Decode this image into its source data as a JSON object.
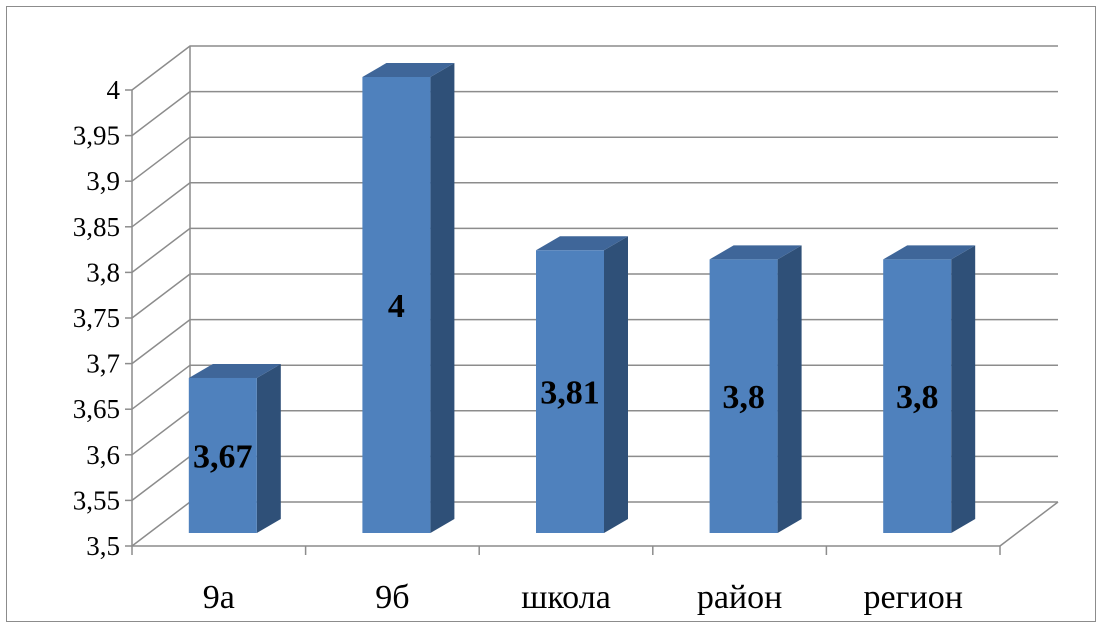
{
  "chart_data": {
    "type": "bar",
    "style": "3d-column",
    "categories": [
      "9а",
      "9б",
      "школа",
      "район",
      "регион"
    ],
    "values": [
      3.67,
      4,
      3.81,
      3.8,
      3.8
    ],
    "data_labels": [
      "3,67",
      "4",
      "3,81",
      "3,8",
      "3,8"
    ],
    "ylim": [
      3.5,
      4
    ],
    "y_ticks": [
      "3,5",
      "3,55",
      "3,6",
      "3,65",
      "3,7",
      "3,75",
      "3,8",
      "3,85",
      "3,9",
      "3,95",
      "4"
    ],
    "grid": true,
    "legend": "none",
    "title": "",
    "xlabel": "",
    "ylabel": ""
  },
  "colors": {
    "bar_front": "#4f81bd",
    "bar_side": "#2f5078",
    "bar_top": "#3f6699",
    "grid": "#8c8c8c",
    "frame": "#8c8c8c"
  }
}
